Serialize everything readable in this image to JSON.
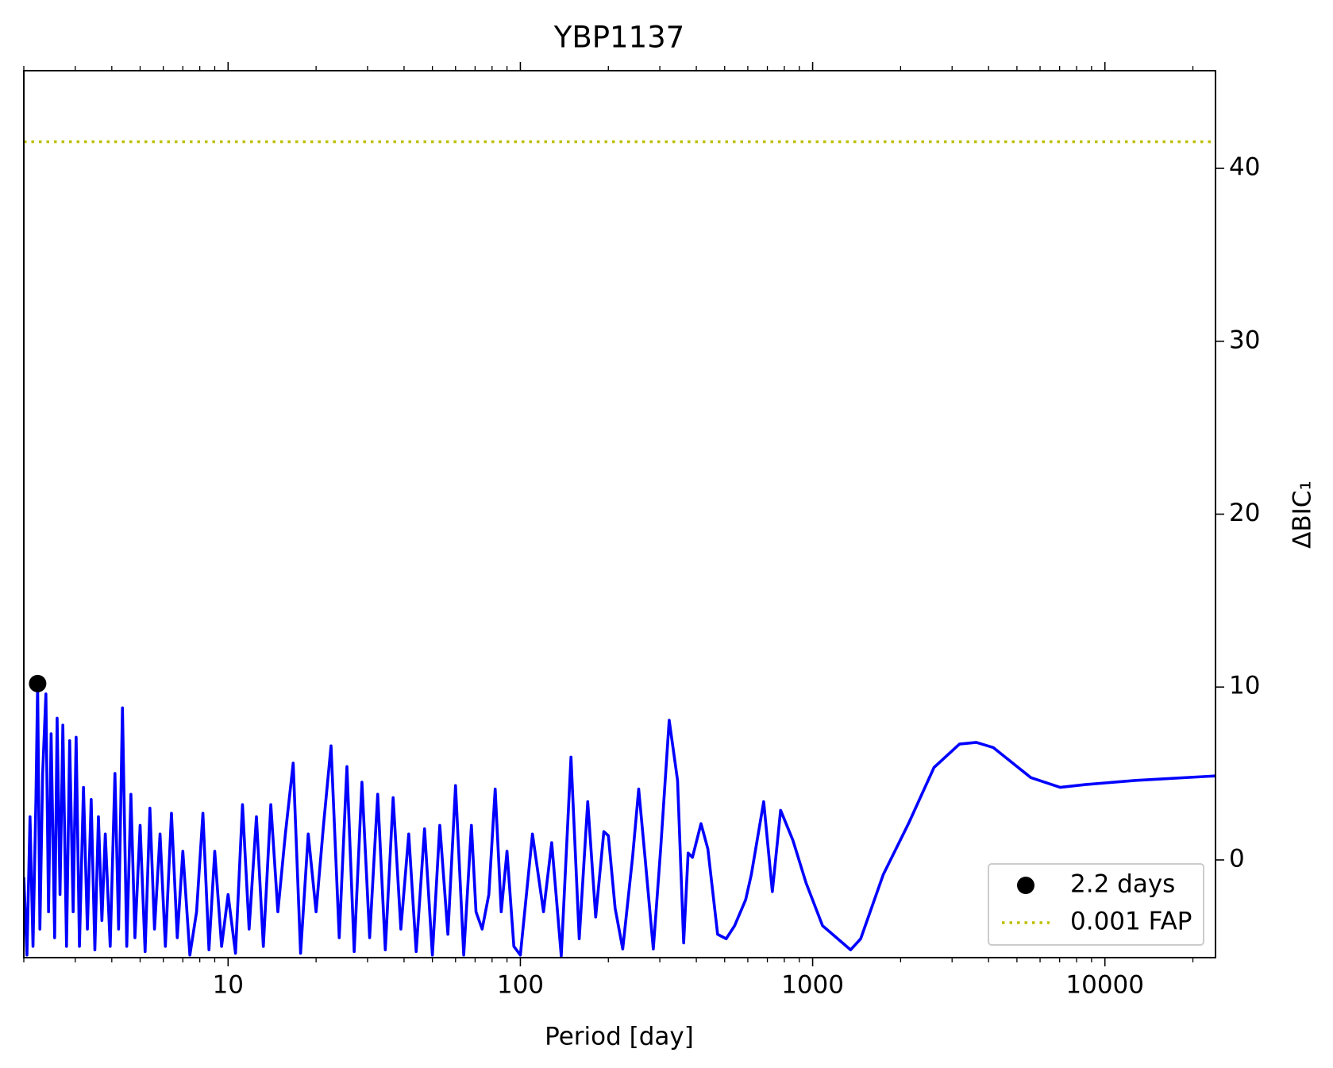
{
  "chart_data": {
    "type": "line",
    "title": "YBP1137",
    "xlabel": "Period [day]",
    "ylabel": "ΔBIC₁",
    "xscale": "log",
    "xlim": [
      2.0,
      23900
    ],
    "ylim": [
      -5.65,
      45.65
    ],
    "xticks": [
      10,
      100,
      1000,
      10000
    ],
    "yticks": [
      0,
      10,
      20,
      30,
      40
    ],
    "yaxis_side": "right",
    "legend": "lower right",
    "line": {
      "color": "#0000ff",
      "x": [
        2.0,
        2.05,
        2.1,
        2.15,
        2.2,
        2.23,
        2.27,
        2.32,
        2.38,
        2.43,
        2.48,
        2.55,
        2.6,
        2.66,
        2.72,
        2.8,
        2.87,
        2.95,
        3.02,
        3.1,
        3.2,
        3.3,
        3.4,
        3.5,
        3.6,
        3.7,
        3.8,
        3.95,
        4.1,
        4.22,
        4.35,
        4.5,
        4.65,
        4.8,
        5.0,
        5.2,
        5.4,
        5.6,
        5.85,
        6.1,
        6.4,
        6.7,
        7.0,
        7.4,
        7.8,
        8.2,
        8.6,
        9.0,
        9.5,
        10,
        10.6,
        11.2,
        11.8,
        12.5,
        13.2,
        14,
        14.8,
        15.7,
        16.7,
        17.7,
        18.8,
        20,
        21.2,
        22.5,
        24,
        25.5,
        27,
        28.7,
        30.5,
        32.5,
        34.5,
        36.7,
        39,
        41.5,
        44,
        47,
        50,
        53,
        56.5,
        60,
        64,
        68,
        70.5,
        74,
        78,
        82,
        86,
        90,
        95,
        100,
        110,
        120,
        128,
        138,
        149,
        159,
        170,
        181,
        193,
        200,
        211,
        224,
        242,
        254,
        267,
        285,
        302,
        323,
        345,
        362,
        375,
        388,
        415,
        438,
        473,
        506,
        541,
        590,
        617,
        680,
        728,
        777,
        856,
        950,
        1081,
        1349,
        1460,
        1745,
        2132,
        2602,
        3180,
        3630,
        4150,
        5580,
        7030,
        8570,
        12770,
        23900
      ],
      "values": [
        -1,
        -5.5,
        2.5,
        -5,
        3.5,
        10.2,
        -4,
        5,
        9.6,
        -3,
        7.3,
        -4.5,
        8.2,
        -2,
        7.8,
        -5,
        6.9,
        -3,
        7.1,
        -5,
        4.2,
        -4,
        3.5,
        -5.2,
        2.5,
        -3.5,
        1.5,
        -5,
        5,
        -4,
        8.8,
        -5,
        3.8,
        -4.5,
        2,
        -5.3,
        3,
        -4,
        1.5,
        -5,
        2.7,
        -4.5,
        0.5,
        -5.5,
        -3,
        2.7,
        -5.2,
        0.5,
        -5,
        -2,
        -5.4,
        3.2,
        -4,
        2.5,
        -5,
        3.2,
        -3,
        1.5,
        5.6,
        -5.4,
        1.5,
        -3,
        2,
        6.6,
        -4.5,
        5.4,
        -5.3,
        4.5,
        -4.5,
        3.8,
        -5.2,
        3.6,
        -4,
        1.5,
        -5.3,
        1.8,
        -5.5,
        2,
        -4.3,
        4.3,
        -5.5,
        2,
        -3,
        -4,
        -2,
        4.1,
        -3,
        0.5,
        -5,
        -5.5,
        1.5,
        -3,
        1,
        -5.55,
        5.95,
        -4.56,
        3.37,
        -3.3,
        1.64,
        1.4,
        -2.8,
        -5.15,
        0.15,
        4.1,
        0.15,
        -5.15,
        0.64,
        8.08,
        4.6,
        -4.8,
        0.4,
        0.15,
        2.1,
        0.64,
        -4.3,
        -4.56,
        -3.8,
        -2.3,
        -0.84,
        3.37,
        -1.83,
        2.87,
        1.14,
        -1.34,
        -3.8,
        -5.2,
        -4.56,
        -0.84,
        2.13,
        5.35,
        6.7,
        6.8,
        6.5,
        4.76,
        4.2,
        4.36,
        4.6,
        4.86
      ]
    },
    "peak": {
      "name": "2.2 days",
      "color": "#000000",
      "x": [
        2.23
      ],
      "values": [
        10.2
      ]
    },
    "threshold": {
      "name": "0.001 FAP",
      "color": "#bfbf00",
      "value": 41.54
    }
  }
}
